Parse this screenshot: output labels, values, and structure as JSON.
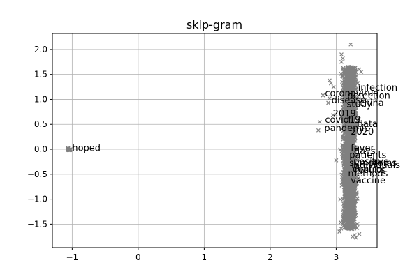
{
  "chart_data": {
    "type": "scatter",
    "title": "skip-gram",
    "xlabel": "",
    "ylabel": "",
    "xlim": [
      -1.3,
      3.62
    ],
    "ylim": [
      -1.97,
      2.32
    ],
    "xticks": [
      -1,
      0,
      1,
      2,
      3
    ],
    "xtick_labels": [
      "−1",
      "0",
      "1",
      "2",
      "3"
    ],
    "yticks": [
      -1.5,
      -1.0,
      -0.5,
      0.0,
      0.5,
      1.0,
      1.5,
      2.0
    ],
    "ytick_labels": [
      "−1.5",
      "−1.0",
      "−0.5",
      "0.0",
      "0.5",
      "1.0",
      "1.5",
      "2.0"
    ],
    "grid": true,
    "marker": "x",
    "marker_color": "#808080",
    "cluster": {
      "x_center": 3.2,
      "x_halfwidth": 0.16,
      "y_min": -1.6,
      "y_max": 1.65
    },
    "outlier_cluster": {
      "x": -1.05,
      "y": 0.0
    },
    "points": [
      {
        "x": 3.22,
        "y": 2.1
      },
      {
        "x": 3.08,
        "y": 1.9
      },
      {
        "x": 3.1,
        "y": 1.82
      },
      {
        "x": 3.08,
        "y": 1.75
      },
      {
        "x": 2.9,
        "y": 1.38
      },
      {
        "x": 2.92,
        "y": 1.32
      },
      {
        "x": 2.96,
        "y": 1.25
      },
      {
        "x": 2.8,
        "y": 1.08
      },
      {
        "x": 2.9,
        "y": 1.02
      },
      {
        "x": 2.88,
        "y": 0.93
      },
      {
        "x": 2.95,
        "y": 0.68
      },
      {
        "x": 2.75,
        "y": 0.55
      },
      {
        "x": 2.73,
        "y": 0.38
      },
      {
        "x": 3.35,
        "y": 1.6
      },
      {
        "x": 3.38,
        "y": 1.55
      },
      {
        "x": 3.32,
        "y": -0.6
      },
      {
        "x": 3.0,
        "y": -0.22
      },
      {
        "x": 3.05,
        "y": -1.65
      },
      {
        "x": 3.25,
        "y": -1.75
      },
      {
        "x": 3.3,
        "y": -1.77
      },
      {
        "x": 3.28,
        "y": -1.72
      },
      {
        "x": 3.35,
        "y": -1.7
      }
    ],
    "annotations": [
      {
        "text": "infection",
        "x": 3.33,
        "y": 1.23
      },
      {
        "text": "coronavirus",
        "x": 2.83,
        "y": 1.12
      },
      {
        "text": "detection",
        "x": 3.17,
        "y": 1.07
      },
      {
        "text": "disease",
        "x": 2.93,
        "y": 0.98
      },
      {
        "text": "china",
        "x": 3.35,
        "y": 0.92
      },
      {
        "text": "study",
        "x": 3.16,
        "y": 0.9
      },
      {
        "text": "2019",
        "x": 2.95,
        "y": 0.71
      },
      {
        "text": "covid19",
        "x": 2.83,
        "y": 0.59
      },
      {
        "text": "flu",
        "x": 3.18,
        "y": 0.59
      },
      {
        "text": "data",
        "x": 3.32,
        "y": 0.5
      },
      {
        "text": "pandemic",
        "x": 2.82,
        "y": 0.42
      },
      {
        "text": "2020",
        "x": 3.22,
        "y": 0.35
      },
      {
        "text": "hoped",
        "x": -1.0,
        "y": 0.02
      },
      {
        "text": "fever",
        "x": 3.22,
        "y": 0.02
      },
      {
        "text": "days",
        "x": 3.27,
        "y": -0.04
      },
      {
        "text": "patients",
        "x": 3.2,
        "y": -0.12
      },
      {
        "text": "positive",
        "x": 3.26,
        "y": -0.25
      },
      {
        "text": "symptoms",
        "x": 3.2,
        "y": -0.28
      },
      {
        "text": "individuals",
        "x": 3.23,
        "y": -0.32
      },
      {
        "text": "control",
        "x": 3.25,
        "y": -0.4
      },
      {
        "text": "results",
        "x": 3.28,
        "y": -0.42
      },
      {
        "text": "methods",
        "x": 3.18,
        "y": -0.49
      },
      {
        "text": "vaccine",
        "x": 3.22,
        "y": -0.63
      }
    ]
  }
}
